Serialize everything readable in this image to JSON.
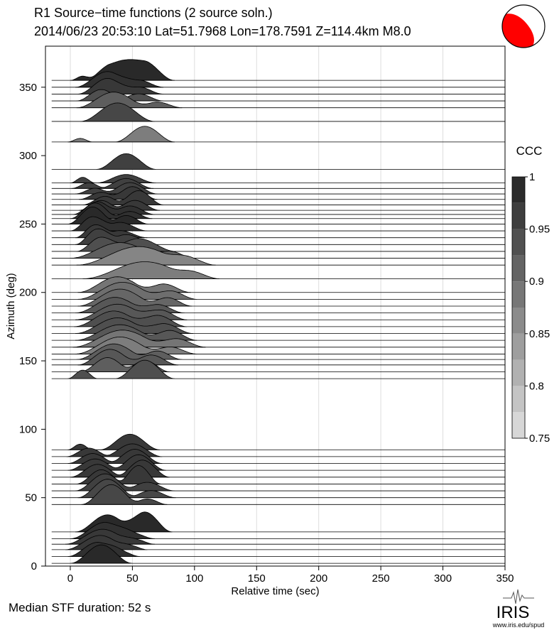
{
  "header": {
    "title_line1": "R1 Source−time functions (2 source soln.)",
    "title_line2": "2014/06/23 20:53:10  Lat=51.7968 Lon=178.7591  Z=114.4km  M8.0"
  },
  "footer": {
    "median_text": "Median STF duration: 52 s",
    "logo_text": "IRIS",
    "logo_url_text": "www.iris.edu/spud"
  },
  "chart_data": {
    "type": "area",
    "title": "R1 Source−time functions (2 source soln.)",
    "xlabel": "Relative time (sec)",
    "ylabel": "Azimuth (deg)",
    "xlim": [
      -20,
      350
    ],
    "ylim": [
      0,
      380
    ],
    "xticks": [
      0,
      50,
      100,
      150,
      200,
      250,
      300,
      350
    ],
    "yticks": [
      0,
      50,
      100,
      150,
      200,
      250,
      300,
      350
    ],
    "grid": "vertical",
    "colorbar": {
      "label": "CCC",
      "range": [
        0.75,
        1.0
      ],
      "ticks": [
        0.75,
        0.8,
        0.85,
        0.9,
        0.95,
        1
      ]
    },
    "traces": [
      {
        "az": 2,
        "ccc": 0.99,
        "pulses": [
          [
            25,
            25,
            26
          ]
        ]
      },
      {
        "az": 7,
        "ccc": 0.98,
        "pulses": [
          [
            22,
            24,
            20
          ],
          [
            40,
            16,
            8
          ]
        ]
      },
      {
        "az": 12,
        "ccc": 0.97,
        "pulses": [
          [
            24,
            28,
            20
          ],
          [
            48,
            14,
            6
          ]
        ]
      },
      {
        "az": 16,
        "ccc": 0.97,
        "pulses": [
          [
            26,
            30,
            21
          ],
          [
            52,
            16,
            7
          ]
        ]
      },
      {
        "az": 20,
        "ccc": 0.98,
        "pulses": [
          [
            28,
            28,
            23
          ],
          [
            50,
            18,
            8
          ]
        ]
      },
      {
        "az": 25,
        "ccc": 0.99,
        "pulses": [
          [
            30,
            26,
            24
          ],
          [
            60,
            22,
            28
          ]
        ]
      },
      {
        "az": 45,
        "ccc": 0.95,
        "pulses": [
          [
            33,
            24,
            28
          ],
          [
            62,
            16,
            8
          ]
        ]
      },
      {
        "az": 50,
        "ccc": 0.95,
        "pulses": [
          [
            30,
            24,
            26
          ],
          [
            65,
            20,
            10
          ]
        ]
      },
      {
        "az": 55,
        "ccc": 0.96,
        "pulses": [
          [
            28,
            24,
            24
          ],
          [
            62,
            22,
            12
          ]
        ]
      },
      {
        "az": 60,
        "ccc": 0.97,
        "pulses": [
          [
            25,
            20,
            20
          ],
          [
            55,
            18,
            26
          ]
        ]
      },
      {
        "az": 65,
        "ccc": 0.97,
        "pulses": [
          [
            22,
            22,
            18
          ],
          [
            58,
            22,
            24
          ]
        ]
      },
      {
        "az": 70,
        "ccc": 0.97,
        "pulses": [
          [
            20,
            22,
            16
          ],
          [
            55,
            22,
            22
          ]
        ]
      },
      {
        "az": 75,
        "ccc": 0.97,
        "pulses": [
          [
            18,
            20,
            14
          ],
          [
            52,
            22,
            20
          ]
        ]
      },
      {
        "az": 80,
        "ccc": 0.97,
        "pulses": [
          [
            15,
            18,
            12
          ],
          [
            50,
            24,
            18
          ]
        ]
      },
      {
        "az": 85,
        "ccc": 0.97,
        "pulses": [
          [
            8,
            10,
            8
          ],
          [
            48,
            24,
            22
          ]
        ]
      },
      {
        "az": 137,
        "ccc": 0.94,
        "pulses": [
          [
            10,
            12,
            12
          ],
          [
            60,
            24,
            26
          ]
        ]
      },
      {
        "az": 142,
        "ccc": 0.92,
        "pulses": [
          [
            30,
            22,
            20
          ],
          [
            60,
            20,
            16
          ]
        ]
      },
      {
        "az": 147,
        "ccc": 0.93,
        "pulses": [
          [
            32,
            26,
            22
          ],
          [
            65,
            22,
            14
          ]
        ]
      },
      {
        "az": 151,
        "ccc": 0.92,
        "pulses": [
          [
            35,
            30,
            22
          ],
          [
            70,
            20,
            12
          ]
        ]
      },
      {
        "az": 155,
        "ccc": 0.88,
        "pulses": [
          [
            40,
            36,
            24
          ],
          [
            80,
            22,
            10
          ]
        ]
      },
      {
        "az": 160,
        "ccc": 0.89,
        "pulses": [
          [
            42,
            40,
            24
          ],
          [
            85,
            24,
            12
          ]
        ]
      },
      {
        "az": 165,
        "ccc": 0.93,
        "pulses": [
          [
            40,
            36,
            22
          ],
          [
            80,
            22,
            14
          ]
        ]
      },
      {
        "az": 170,
        "ccc": 0.94,
        "pulses": [
          [
            38,
            34,
            22
          ],
          [
            75,
            24,
            14
          ]
        ]
      },
      {
        "az": 175,
        "ccc": 0.94,
        "pulses": [
          [
            35,
            32,
            22
          ],
          [
            70,
            24,
            16
          ]
        ]
      },
      {
        "az": 180,
        "ccc": 0.93,
        "pulses": [
          [
            38,
            34,
            22
          ],
          [
            72,
            22,
            14
          ]
        ]
      },
      {
        "az": 185,
        "ccc": 0.93,
        "pulses": [
          [
            36,
            32,
            22
          ],
          [
            70,
            22,
            12
          ]
        ]
      },
      {
        "az": 190,
        "ccc": 0.91,
        "pulses": [
          [
            40,
            34,
            24
          ],
          [
            78,
            20,
            12
          ]
        ]
      },
      {
        "az": 195,
        "ccc": 0.9,
        "pulses": [
          [
            42,
            36,
            24
          ],
          [
            80,
            22,
            12
          ]
        ]
      },
      {
        "az": 200,
        "ccc": 0.89,
        "pulses": [
          [
            38,
            32,
            22
          ],
          [
            75,
            22,
            12
          ]
        ]
      },
      {
        "az": 210,
        "ccc": 0.88,
        "pulses": [
          [
            60,
            50,
            24
          ],
          [
            100,
            20,
            8
          ]
        ]
      },
      {
        "az": 220,
        "ccc": 0.87,
        "pulses": [
          [
            55,
            50,
            26
          ],
          [
            95,
            22,
            10
          ]
        ]
      },
      {
        "az": 225,
        "ccc": 0.92,
        "pulses": [
          [
            40,
            40,
            22
          ],
          [
            80,
            20,
            10
          ]
        ]
      },
      {
        "az": 230,
        "ccc": 0.94,
        "pulses": [
          [
            25,
            20,
            20
          ],
          [
            55,
            30,
            18
          ]
        ]
      },
      {
        "az": 235,
        "ccc": 0.96,
        "pulses": [
          [
            22,
            18,
            22
          ],
          [
            45,
            24,
            14
          ]
        ]
      },
      {
        "az": 240,
        "ccc": 0.97,
        "pulses": [
          [
            20,
            16,
            18
          ],
          [
            40,
            22,
            10
          ]
        ]
      },
      {
        "az": 245,
        "ccc": 0.98,
        "pulses": [
          [
            18,
            18,
            20
          ],
          [
            40,
            22,
            12
          ]
        ]
      },
      {
        "az": 250,
        "ccc": 0.99,
        "pulses": [
          [
            18,
            20,
            24
          ],
          [
            45,
            18,
            12
          ]
        ]
      },
      {
        "az": 254,
        "ccc": 0.98,
        "pulses": [
          [
            20,
            20,
            22
          ],
          [
            48,
            18,
            10
          ]
        ]
      },
      {
        "az": 257,
        "ccc": 0.98,
        "pulses": [
          [
            22,
            20,
            18
          ],
          [
            48,
            20,
            12
          ]
        ]
      },
      {
        "az": 260,
        "ccc": 0.97,
        "pulses": [
          [
            25,
            18,
            14
          ],
          [
            52,
            20,
            14
          ]
        ]
      },
      {
        "az": 264,
        "ccc": 0.97,
        "pulses": [
          [
            28,
            18,
            12
          ],
          [
            55,
            20,
            20
          ]
        ]
      },
      {
        "az": 268,
        "ccc": 0.97,
        "pulses": [
          [
            25,
            18,
            10
          ],
          [
            50,
            20,
            18
          ]
        ]
      },
      {
        "az": 272,
        "ccc": 0.96,
        "pulses": [
          [
            20,
            16,
            8
          ],
          [
            48,
            22,
            16
          ]
        ]
      },
      {
        "az": 276,
        "ccc": 0.96,
        "pulses": [
          [
            15,
            14,
            8
          ],
          [
            45,
            22,
            14
          ]
        ]
      },
      {
        "az": 280,
        "ccc": 0.96,
        "pulses": [
          [
            10,
            10,
            8
          ],
          [
            45,
            24,
            12
          ]
        ]
      },
      {
        "az": 290,
        "ccc": 0.96,
        "pulses": [
          [
            45,
            24,
            22
          ]
        ]
      },
      {
        "az": 310,
        "ccc": 0.88,
        "pulses": [
          [
            8,
            10,
            5
          ],
          [
            60,
            24,
            22
          ]
        ]
      },
      {
        "az": 325,
        "ccc": 0.95,
        "pulses": [
          [
            38,
            30,
            26
          ]
        ]
      },
      {
        "az": 335,
        "ccc": 0.92,
        "pulses": [
          [
            35,
            30,
            22
          ],
          [
            70,
            20,
            8
          ]
        ]
      },
      {
        "az": 340,
        "ccc": 0.94,
        "pulses": [
          [
            25,
            20,
            16
          ],
          [
            55,
            20,
            10
          ]
        ]
      },
      {
        "az": 345,
        "ccc": 0.97,
        "pulses": [
          [
            30,
            24,
            22
          ],
          [
            55,
            20,
            10
          ]
        ]
      },
      {
        "az": 350,
        "ccc": 0.98,
        "pulses": [
          [
            30,
            26,
            22
          ],
          [
            55,
            20,
            10
          ]
        ]
      },
      {
        "az": 355,
        "ccc": 0.99,
        "pulses": [
          [
            10,
            10,
            6
          ],
          [
            35,
            24,
            24
          ],
          [
            58,
            26,
            28
          ]
        ]
      }
    ]
  },
  "colors": {
    "beachball_fill": "#ff0000",
    "axis": "#000000",
    "gridline": "#dddddd"
  }
}
